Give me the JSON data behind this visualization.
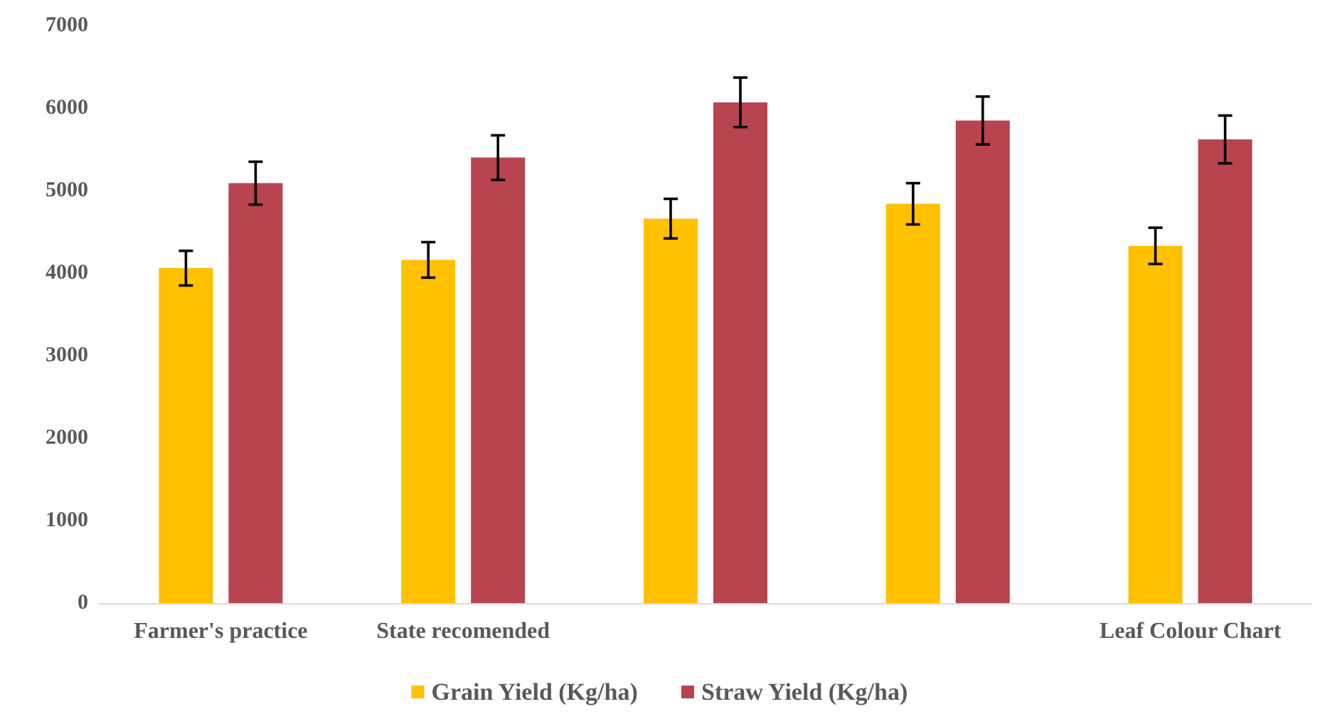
{
  "chart_data": {
    "type": "bar",
    "categories": [
      "Farmer's practice",
      "State recomended",
      null,
      null,
      "Leaf Colour Chart"
    ],
    "series": [
      {
        "name": "Grain Yield (Kg/ha)",
        "color": "#ffc000",
        "values": [
          4060,
          4160,
          4660,
          4840,
          4330
        ],
        "errors": [
          210,
          215,
          240,
          250,
          220
        ]
      },
      {
        "name": "Straw Yield (Kg/ha)",
        "color": "#b8444f",
        "values": [
          5090,
          5400,
          6070,
          5850,
          5620
        ],
        "errors": [
          260,
          270,
          300,
          290,
          290
        ]
      }
    ],
    "ylim": [
      0,
      7000
    ],
    "yticks": [
      0,
      1000,
      2000,
      3000,
      4000,
      5000,
      6000,
      7000
    ],
    "grid": false,
    "legend": "bottom"
  }
}
